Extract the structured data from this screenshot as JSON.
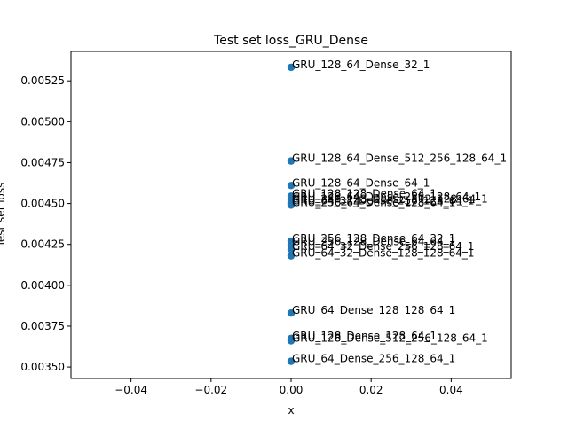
{
  "chart_data": {
    "type": "scatter",
    "title": "Test set loss_GRU_Dense",
    "xlabel": "x",
    "ylabel": "Test set loss",
    "xlim": [
      -0.055,
      0.055
    ],
    "ylim": [
      0.00343,
      0.00543
    ],
    "xticks": [
      -0.04,
      -0.02,
      0.0,
      0.02,
      0.04
    ],
    "xtick_labels": [
      "−0.04",
      "−0.02",
      "0.00",
      "0.02",
      "0.04"
    ],
    "yticks": [
      0.0035,
      0.00375,
      0.004,
      0.00425,
      0.0045,
      0.00475,
      0.005,
      0.00525
    ],
    "ytick_labels": [
      "0.00350",
      "0.00375",
      "0.00400",
      "0.00425",
      "0.00450",
      "0.00475",
      "0.00500",
      "0.00525"
    ],
    "grid": false,
    "marker_color": "#1f77b4",
    "points": [
      {
        "x": 0,
        "y": 0.005333,
        "label": "GRU_128_64_Dense_32_1"
      },
      {
        "x": 0,
        "y": 0.00476,
        "label": "GRU_128_64_Dense_512_256_128_64_1"
      },
      {
        "x": 0,
        "y": 0.00461,
        "label": "GRU_128_64_Dense_64_1"
      },
      {
        "x": 0,
        "y": 0.004545,
        "label": "GRU_128_128_Dense_64_1"
      },
      {
        "x": 0,
        "y": 0.004525,
        "label": "GRU_128_64_Dense_256_128_64_1"
      },
      {
        "x": 0,
        "y": 0.00451,
        "label": "GRU_256_128_Dense_512_128_64_1"
      },
      {
        "x": 0,
        "y": 0.0045,
        "label": "GRU_64_32_Dense_256_128_64_1"
      },
      {
        "x": 0,
        "y": 0.00449,
        "label": "GRU_256_64_Dense_128_64_1"
      },
      {
        "x": 0,
        "y": 0.00427,
        "label": "GRU_256_128_Dense_64_32_1"
      },
      {
        "x": 0,
        "y": 0.00425,
        "label": "GRU_256_128_Dense_64_64_1"
      },
      {
        "x": 0,
        "y": 0.00422,
        "label": "GRU_64_32_Dense_256_128_64_1"
      },
      {
        "x": 0,
        "y": 0.00418,
        "label": "GRU_64_32_Dense_128_128_64_1"
      },
      {
        "x": 0,
        "y": 0.00383,
        "label": "GRU_64_Dense_128_128_64_1"
      },
      {
        "x": 0,
        "y": 0.003675,
        "label": "GRU_128_Dense_128_64_1"
      },
      {
        "x": 0,
        "y": 0.00366,
        "label": "GRU_128_Dense_512_256_128_64_1"
      },
      {
        "x": 0,
        "y": 0.003535,
        "label": "GRU_64_Dense_256_128_64_1"
      }
    ]
  }
}
